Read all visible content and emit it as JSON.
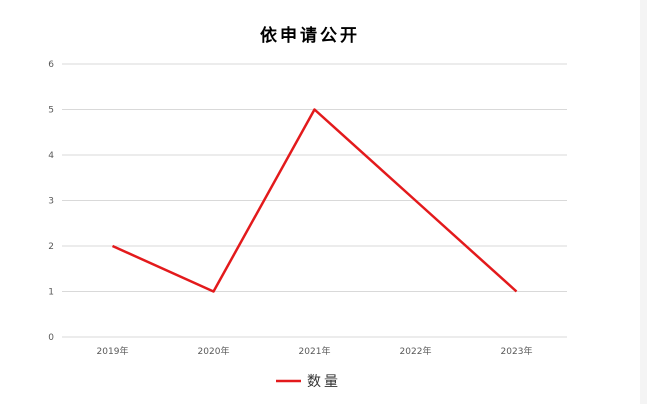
{
  "chart_data": {
    "type": "line",
    "title": "依申请公开",
    "categories": [
      "2019年",
      "2020年",
      "2021年",
      "2022年",
      "2023年"
    ],
    "series": [
      {
        "name": "数量",
        "values": [
          2,
          1,
          5,
          3,
          1
        ],
        "color": "#e31a1c"
      }
    ],
    "ylim": [
      0,
      6
    ],
    "yticks": [
      0,
      1,
      2,
      3,
      4,
      5,
      6
    ],
    "grid": true,
    "legend": "bottom"
  }
}
